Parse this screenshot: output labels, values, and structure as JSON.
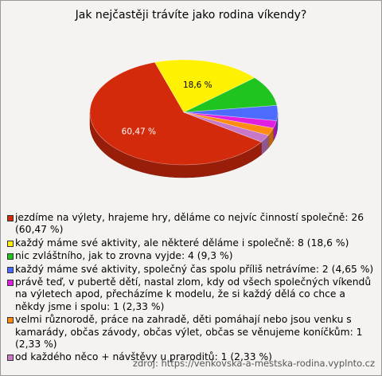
{
  "chart_data": {
    "type": "pie",
    "title": "Jak nejčastěji trávíte jako rodina víkendy?",
    "source": "zdroj: https://venkovska-a-mestska-rodina.vyplnto.cz",
    "categories": [
      "jezdíme na výlety, hrajeme hry, děláme co nejvíc činností společně: 26 (60,47 %)",
      "každý máme své aktivity, ale některé děláme i společně: 8 (18,6 %)",
      "nic zvláštního, jak to zrovna vyjde: 4 (9,3 %)",
      "každý máme své aktivity, společný čas spolu příliš netrávíme: 2 (4,65 %)",
      "právě teď, v pubertě dětí, nastal zlom, kdy od všech společných víkendů na výletech apod, přecházíme k modelu, že si každý dělá co chce a někdy jsme i spolu: 1 (2,33 %)",
      "velmi různorodě, práce na zahradě, děti pomáhají nebo jsou venku s kamarády, občas závody, občas výlet, občas se věnujeme koníčkům: 1 (2,33 %)",
      "od každého něco + návštěvy u praroditů: 1 (2,33 %)"
    ],
    "values": [
      60.47,
      18.6,
      9.3,
      4.65,
      2.33,
      2.33,
      2.33
    ],
    "value_labels": [
      "60,47 %",
      "18,6 %",
      null,
      null,
      null,
      null,
      null
    ],
    "colors": [
      "#d42a0c",
      "#fff200",
      "#1fc41f",
      "#4c6cff",
      "#e020e0",
      "#ff8c10",
      "#c878c8"
    ]
  }
}
